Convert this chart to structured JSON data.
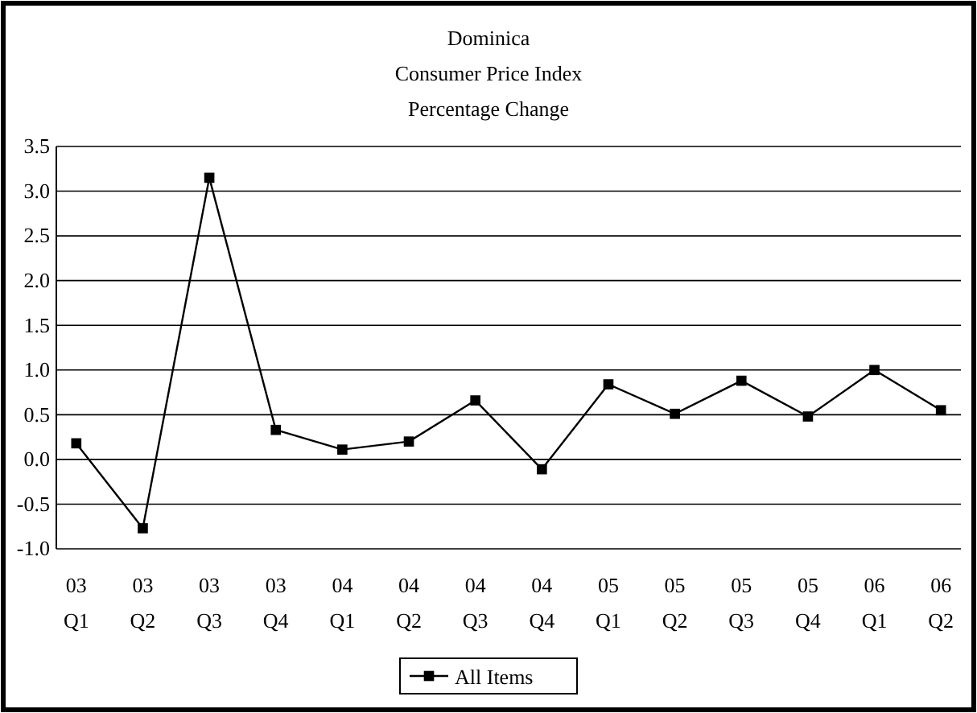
{
  "chart_data": {
    "type": "line",
    "title": "Dominica\nConsumer Price Index\nPercentage Change",
    "categories": [
      "03\nQ1",
      "03\nQ2",
      "03\nQ3",
      "03\nQ4",
      "04\nQ1",
      "04\nQ2",
      "04\nQ3",
      "04\nQ4",
      "05\nQ1",
      "05\nQ2",
      "05\nQ3",
      "05\nQ4",
      "06\nQ1",
      "06\nQ2"
    ],
    "series": [
      {
        "name": "All Items",
        "color": "#000000",
        "values": [
          0.18,
          -0.77,
          3.15,
          0.33,
          0.11,
          0.2,
          0.66,
          -0.11,
          0.84,
          0.51,
          0.88,
          0.48,
          1.0,
          0.55
        ]
      }
    ],
    "ylim": [
      -1.0,
      3.5
    ],
    "yticks": [
      {
        "value": -1,
        "label": "-1.0"
      },
      {
        "value": -0.5,
        "label": "-0.5"
      },
      {
        "value": 0,
        "label": "0.0"
      },
      {
        "value": 0.5,
        "label": "0.5"
      },
      {
        "value": 1,
        "label": "1.0"
      },
      {
        "value": 1.5,
        "label": "1.5"
      },
      {
        "value": 2,
        "label": "2.0"
      },
      {
        "value": 2.5,
        "label": "2.5"
      },
      {
        "value": 3,
        "label": "3.0"
      },
      {
        "value": 3.5,
        "label": "3.5"
      }
    ],
    "grid": "y",
    "legend": "bottom",
    "marker": "square",
    "line_style": "solid"
  }
}
